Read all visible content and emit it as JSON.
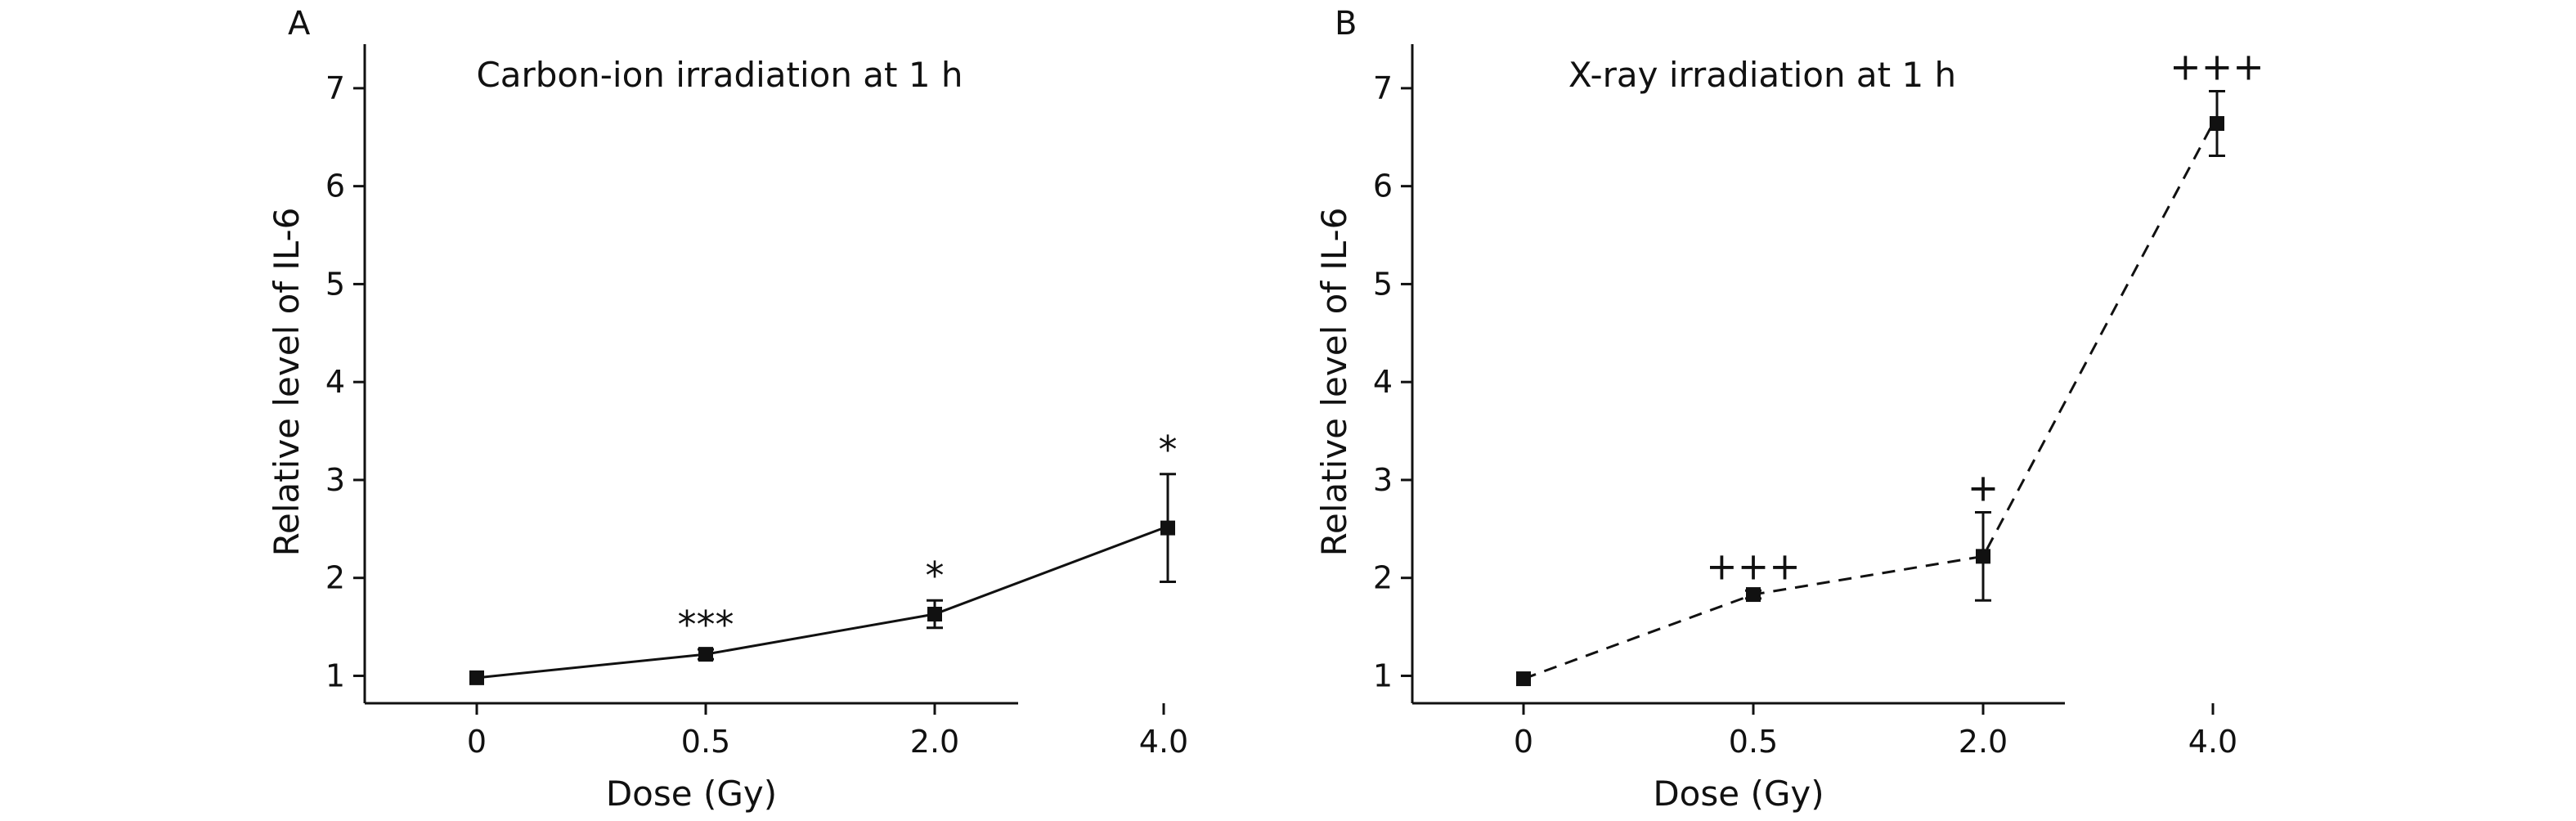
{
  "chart_data": [
    {
      "panel_label": "A",
      "type": "line",
      "title": "Carbon-ion irradiation at 1 h",
      "xlabel": "Dose (Gy)",
      "ylabel": "Relative level of IL-6",
      "categories": [
        "0",
        "0.5",
        "2.0",
        "4.0"
      ],
      "yticks": [
        "1",
        "2",
        "3",
        "4",
        "5",
        "6",
        "7"
      ],
      "ylim": [
        0.72,
        7.45
      ],
      "line_style": "solid",
      "grid": false,
      "series": [
        {
          "values": [
            0.98,
            1.22,
            1.63,
            2.51
          ],
          "errors": [
            0.0,
            0.05,
            0.14,
            0.55
          ],
          "annotations": [
            "",
            "***",
            "*",
            "*"
          ]
        }
      ]
    },
    {
      "panel_label": "B",
      "type": "line",
      "title": "X-ray irradiation at 1 h",
      "xlabel": "Dose (Gy)",
      "ylabel": "Relative level of IL-6",
      "categories": [
        "0",
        "0.5",
        "2.0",
        "4.0"
      ],
      "yticks": [
        "1",
        "2",
        "3",
        "4",
        "5",
        "6",
        "7"
      ],
      "ylim": [
        0.72,
        7.45
      ],
      "line_style": "dashed",
      "grid": false,
      "series": [
        {
          "values": [
            0.97,
            1.83,
            2.22,
            6.64
          ],
          "errors": [
            0.0,
            0.04,
            0.45,
            0.33
          ],
          "annotations": [
            "",
            "+++",
            "+",
            "+++"
          ]
        }
      ]
    }
  ]
}
